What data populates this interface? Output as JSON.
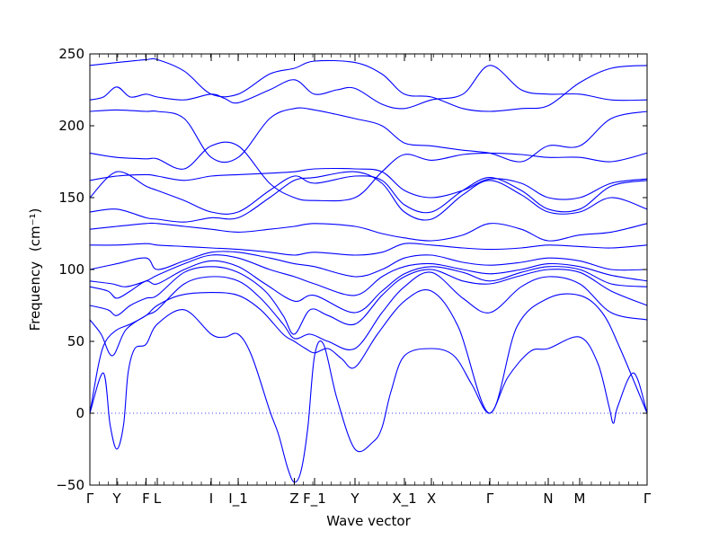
{
  "chart_data": {
    "type": "line",
    "title": "",
    "xlabel": "Wave vector",
    "ylabel": "Frequency",
    "ylabel_unit": "(cm⁻¹)",
    "ylim": [
      -50,
      250
    ],
    "yticks": [
      -50,
      0,
      50,
      100,
      150,
      200,
      250
    ],
    "zero_line": {
      "y": 0,
      "style": "dotted"
    },
    "grid": false,
    "legend": "none",
    "line_color": "#0000ff",
    "xlim": [
      0,
      12.4
    ],
    "high_symmetry_points": [
      {
        "label": "Γ",
        "x": 0
      },
      {
        "label": "Y",
        "x": 0.6
      },
      {
        "label": "F",
        "x": 1.25
      },
      {
        "label": "L",
        "x": 1.5
      },
      {
        "label": "I",
        "x": 2.7
      },
      {
        "label": "I_1",
        "x": 3.3
      },
      {
        "label": "Z",
        "x": 4.55
      },
      {
        "label": "F_1",
        "x": 5.0
      },
      {
        "label": "Y",
        "x": 5.9
      },
      {
        "label": "X_1",
        "x": 7.0
      },
      {
        "label": "X",
        "x": 7.6
      },
      {
        "label": "Γ",
        "x": 8.9
      },
      {
        "label": "N",
        "x": 10.2
      },
      {
        "label": "M",
        "x": 10.9
      },
      {
        "label": "Γ",
        "x": 12.4
      }
    ],
    "series": [
      {
        "x": [
          0,
          0.3,
          0.45,
          0.6,
          0.75,
          0.85,
          1.0,
          1.25,
          1.5,
          2.1,
          2.7,
          3.0,
          3.3,
          3.6,
          4.0,
          4.2,
          4.4,
          4.55,
          4.7,
          4.85,
          5.0,
          5.2,
          5.5,
          5.9,
          6.3,
          6.5,
          6.7,
          7.0,
          7.6,
          8.1,
          8.5,
          8.9,
          9.3,
          9.8,
          10.2,
          10.9,
          11.3,
          11.55,
          11.65,
          11.75,
          12.1,
          12.4
        ],
        "y": [
          0,
          28,
          -8,
          -25,
          -8,
          28,
          45,
          48,
          62,
          72,
          55,
          53,
          55,
          40,
          2,
          -15,
          -38,
          -48,
          -40,
          -10,
          40,
          48,
          10,
          -25,
          -20,
          -10,
          15,
          40,
          45,
          40,
          20,
          0,
          25,
          43,
          45,
          53,
          35,
          5,
          -7,
          5,
          28,
          0
        ]
      },
      {
        "x": [
          0,
          0.2,
          0.35,
          0.6,
          0.9,
          1.25,
          1.5,
          2.0,
          2.7,
          3.3,
          3.8,
          4.3,
          4.55,
          4.8,
          5.0,
          5.3,
          5.6,
          5.9,
          6.4,
          7.0,
          7.6,
          8.2,
          8.9,
          9.5,
          10.2,
          10.9,
          11.4,
          11.8,
          12.4
        ],
        "y": [
          0,
          35,
          50,
          58,
          62,
          68,
          75,
          82,
          84,
          82,
          72,
          55,
          50,
          45,
          42,
          45,
          38,
          32,
          55,
          78,
          85,
          60,
          0,
          60,
          80,
          82,
          70,
          45,
          0
        ]
      },
      {
        "x": [
          0,
          0.25,
          0.5,
          0.8,
          1.25,
          1.5,
          2.1,
          2.7,
          3.3,
          3.8,
          4.3,
          4.55,
          4.9,
          5.3,
          5.9,
          6.5,
          7.0,
          7.6,
          8.3,
          8.9,
          9.6,
          10.2,
          10.9,
          11.6,
          12.4
        ],
        "y": [
          65,
          55,
          40,
          58,
          68,
          72,
          90,
          95,
          92,
          80,
          62,
          52,
          55,
          50,
          45,
          70,
          88,
          98,
          80,
          70,
          88,
          95,
          90,
          70,
          65
        ]
      },
      {
        "x": [
          0,
          0.4,
          0.6,
          0.9,
          1.25,
          1.5,
          2.1,
          2.7,
          3.3,
          3.9,
          4.3,
          4.55,
          4.9,
          5.3,
          5.9,
          6.5,
          7.0,
          7.6,
          8.3,
          8.9,
          9.5,
          10.2,
          10.9,
          11.6,
          12.4
        ],
        "y": [
          75,
          72,
          68,
          75,
          80,
          82,
          98,
          102,
          98,
          85,
          68,
          55,
          72,
          68,
          62,
          82,
          95,
          100,
          92,
          90,
          95,
          100,
          98,
          85,
          75
        ]
      },
      {
        "x": [
          0,
          0.4,
          0.6,
          0.9,
          1.25,
          1.5,
          2.1,
          2.7,
          3.3,
          3.9,
          4.55,
          5.0,
          5.9,
          6.5,
          7.0,
          7.6,
          8.3,
          8.9,
          9.6,
          10.2,
          10.9,
          11.6,
          12.4
        ],
        "y": [
          88,
          85,
          80,
          85,
          92,
          90,
          100,
          106,
          102,
          90,
          78,
          82,
          70,
          85,
          97,
          102,
          98,
          92,
          98,
          102,
          100,
          90,
          88
        ]
      },
      {
        "x": [
          0,
          0.5,
          0.8,
          1.25,
          1.5,
          2.1,
          2.7,
          3.3,
          4.0,
          4.55,
          5.0,
          5.9,
          6.5,
          7.0,
          7.6,
          8.3,
          8.9,
          9.6,
          10.2,
          10.9,
          11.6,
          12.4
        ],
        "y": [
          92,
          90,
          88,
          92,
          96,
          104,
          110,
          108,
          100,
          95,
          90,
          82,
          95,
          102,
          104,
          100,
          97,
          100,
          104,
          102,
          96,
          92
        ]
      },
      {
        "x": [
          0,
          0.6,
          1.25,
          1.5,
          2.1,
          2.7,
          3.3,
          4.0,
          4.55,
          5.0,
          5.9,
          6.5,
          7.0,
          7.6,
          8.3,
          8.9,
          9.6,
          10.2,
          10.9,
          11.6,
          12.4
        ],
        "y": [
          100,
          104,
          108,
          100,
          106,
          112,
          112,
          108,
          104,
          102,
          95,
          100,
          108,
          110,
          105,
          103,
          105,
          108,
          106,
          100,
          100
        ]
      },
      {
        "x": [
          0,
          0.6,
          1.25,
          1.5,
          2.1,
          2.7,
          3.3,
          4.0,
          4.55,
          5.0,
          5.9,
          6.5,
          7.0,
          7.6,
          8.3,
          8.9,
          9.6,
          10.2,
          10.9,
          11.6,
          12.4
        ],
        "y": [
          117,
          117,
          118,
          117,
          116,
          115,
          114,
          112,
          110,
          112,
          110,
          112,
          118,
          117,
          115,
          114,
          115,
          117,
          116,
          115,
          117
        ]
      },
      {
        "x": [
          0,
          0.6,
          1.25,
          1.5,
          2.1,
          2.7,
          3.3,
          4.0,
          4.55,
          5.0,
          5.9,
          6.5,
          7.0,
          7.6,
          8.3,
          8.9,
          9.6,
          10.2,
          10.9,
          11.6,
          12.4
        ],
        "y": [
          128,
          130,
          132,
          132,
          130,
          128,
          126,
          128,
          130,
          132,
          130,
          125,
          122,
          120,
          124,
          132,
          128,
          120,
          124,
          126,
          132
        ]
      },
      {
        "x": [
          0,
          0.6,
          1.25,
          1.5,
          2.1,
          2.7,
          3.3,
          4.0,
          4.55,
          5.0,
          5.9,
          6.5,
          7.0,
          7.6,
          8.3,
          8.9,
          9.6,
          10.2,
          10.9,
          11.6,
          12.4
        ],
        "y": [
          140,
          142,
          136,
          135,
          133,
          136,
          136,
          150,
          162,
          164,
          168,
          160,
          140,
          135,
          152,
          162,
          152,
          140,
          140,
          150,
          142
        ]
      },
      {
        "x": [
          0,
          0.6,
          1.25,
          1.5,
          2.1,
          2.7,
          3.3,
          4.0,
          4.55,
          5.0,
          5.9,
          6.5,
          7.0,
          7.6,
          8.3,
          8.9,
          9.6,
          10.2,
          10.9,
          11.6,
          12.4
        ],
        "y": [
          150,
          168,
          158,
          155,
          148,
          140,
          140,
          155,
          165,
          160,
          165,
          162,
          145,
          140,
          155,
          164,
          155,
          142,
          142,
          158,
          162
        ]
      },
      {
        "x": [
          0,
          0.6,
          1.25,
          1.5,
          2.1,
          2.7,
          3.3,
          4.0,
          4.55,
          5.0,
          5.9,
          6.5,
          7.0,
          7.6,
          8.3,
          8.9,
          9.6,
          10.2,
          10.9,
          11.6,
          12.4
        ],
        "y": [
          162,
          165,
          166,
          165,
          162,
          165,
          166,
          167,
          168,
          170,
          170,
          168,
          155,
          150,
          155,
          163,
          160,
          150,
          150,
          160,
          163
        ]
      },
      {
        "x": [
          0,
          0.6,
          1.25,
          1.5,
          2.1,
          2.7,
          3.3,
          4.0,
          4.55,
          5.0,
          5.9,
          6.5,
          7.0,
          7.6,
          8.3,
          8.9,
          9.6,
          10.2,
          10.9,
          11.6,
          12.4
        ],
        "y": [
          181,
          178,
          177,
          177,
          170,
          186,
          186,
          160,
          150,
          148,
          150,
          168,
          180,
          176,
          180,
          181,
          180,
          178,
          178,
          175,
          181
        ]
      },
      {
        "x": [
          0,
          0.6,
          1.25,
          1.5,
          2.1,
          2.7,
          3.3,
          4.0,
          4.55,
          5.0,
          5.9,
          6.5,
          7.0,
          7.6,
          8.3,
          8.9,
          9.6,
          10.2,
          10.9,
          11.6,
          12.4
        ],
        "y": [
          210,
          211,
          210,
          210,
          205,
          178,
          178,
          205,
          212,
          211,
          205,
          200,
          188,
          186,
          183,
          181,
          175,
          186,
          186,
          205,
          210
        ]
      },
      {
        "x": [
          0,
          0.3,
          0.6,
          0.9,
          1.25,
          1.5,
          2.1,
          2.7,
          3.0,
          3.3,
          4.0,
          4.55,
          5.0,
          5.5,
          5.9,
          6.5,
          7.0,
          7.6,
          8.3,
          8.9,
          9.6,
          10.2,
          10.9,
          11.6,
          12.4
        ],
        "y": [
          218,
          220,
          227,
          220,
          222,
          220,
          218,
          222,
          219,
          216,
          225,
          232,
          222,
          225,
          226,
          215,
          212,
          218,
          222,
          242,
          225,
          222,
          222,
          218,
          218
        ]
      },
      {
        "x": [
          0,
          0.6,
          1.25,
          1.5,
          2.1,
          2.7,
          3.3,
          4.0,
          4.55,
          5.0,
          5.9,
          6.5,
          7.0,
          7.6,
          8.3,
          8.9,
          9.6,
          10.2,
          10.9,
          11.6,
          12.4
        ],
        "y": [
          242,
          244,
          246,
          246,
          238,
          222,
          222,
          236,
          240,
          245,
          244,
          236,
          222,
          220,
          212,
          210,
          212,
          214,
          230,
          240,
          242
        ]
      }
    ]
  }
}
